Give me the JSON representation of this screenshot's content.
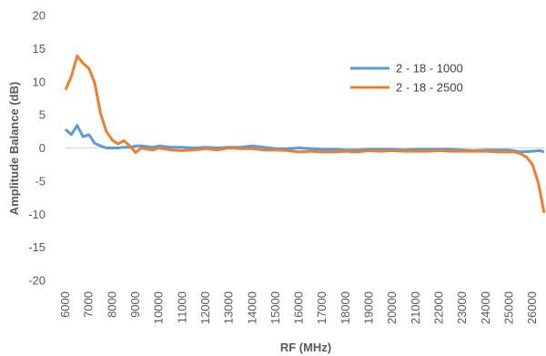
{
  "chart_data": {
    "type": "line",
    "xlabel": "RF (MHz)",
    "ylabel": "Amplitude Balance (dB)",
    "xlim": [
      6000,
      26500
    ],
    "ylim": [
      -20,
      20
    ],
    "yticks": [
      20,
      15,
      10,
      5,
      0,
      -5,
      -10,
      -15,
      -20
    ],
    "xticks": [
      6000,
      7000,
      8000,
      9000,
      10000,
      11000,
      12000,
      13000,
      14000,
      15000,
      16000,
      17000,
      18000,
      19000,
      20000,
      21000,
      22000,
      23000,
      24000,
      25000,
      26000
    ],
    "grid": false,
    "legend_position": "right",
    "series": [
      {
        "name": "2 - 18 - 1000",
        "color": "#5B9BD5",
        "x": [
          6000,
          6250,
          6500,
          6750,
          7000,
          7250,
          7500,
          7750,
          8000,
          8250,
          8500,
          8750,
          9000,
          9250,
          9500,
          9750,
          10000,
          10500,
          11000,
          11500,
          12000,
          12500,
          13000,
          13500,
          14000,
          14500,
          15000,
          15500,
          16000,
          16500,
          17000,
          17500,
          18000,
          18500,
          19000,
          19500,
          20000,
          20500,
          21000,
          21500,
          22000,
          22500,
          23000,
          23500,
          24000,
          24500,
          25000,
          25500,
          26000,
          26300,
          26500
        ],
        "values": [
          2.8,
          2.0,
          3.4,
          1.7,
          2.0,
          0.7,
          0.3,
          0.0,
          0.0,
          0.0,
          0.1,
          0.1,
          0.3,
          0.3,
          0.2,
          0.1,
          0.3,
          0.1,
          0.1,
          0.0,
          0.1,
          0.0,
          0.1,
          0.1,
          0.3,
          0.1,
          -0.1,
          -0.1,
          0.0,
          -0.1,
          -0.2,
          -0.2,
          -0.3,
          -0.3,
          -0.2,
          -0.2,
          -0.2,
          -0.3,
          -0.2,
          -0.2,
          -0.2,
          -0.2,
          -0.3,
          -0.4,
          -0.3,
          -0.3,
          -0.3,
          -0.6,
          -0.5,
          -0.4,
          -0.6
        ]
      },
      {
        "name": "2 - 18 - 2500",
        "color": "#ED7D31",
        "x": [
          6000,
          6250,
          6500,
          6750,
          7000,
          7250,
          7500,
          7750,
          8000,
          8250,
          8500,
          8750,
          9000,
          9250,
          9500,
          9750,
          10000,
          10500,
          11000,
          11500,
          12000,
          12500,
          13000,
          13500,
          14000,
          14500,
          15000,
          15500,
          16000,
          16500,
          17000,
          17500,
          18000,
          18500,
          19000,
          19500,
          20000,
          20500,
          21000,
          21500,
          22000,
          22500,
          23000,
          23500,
          24000,
          24500,
          25000,
          25250,
          25500,
          25750,
          26000,
          26250,
          26500
        ],
        "values": [
          8.8,
          10.8,
          13.9,
          12.8,
          12.0,
          9.8,
          5.2,
          2.5,
          1.2,
          0.6,
          1.1,
          0.3,
          -0.7,
          0.0,
          -0.2,
          -0.3,
          0.0,
          -0.3,
          -0.4,
          -0.3,
          -0.1,
          -0.3,
          0.0,
          -0.1,
          -0.1,
          -0.3,
          -0.3,
          -0.4,
          -0.6,
          -0.5,
          -0.6,
          -0.6,
          -0.5,
          -0.6,
          -0.4,
          -0.5,
          -0.4,
          -0.5,
          -0.5,
          -0.5,
          -0.4,
          -0.5,
          -0.5,
          -0.5,
          -0.5,
          -0.6,
          -0.6,
          -0.6,
          -0.9,
          -1.4,
          -2.5,
          -5.3,
          -9.8
        ]
      }
    ]
  }
}
